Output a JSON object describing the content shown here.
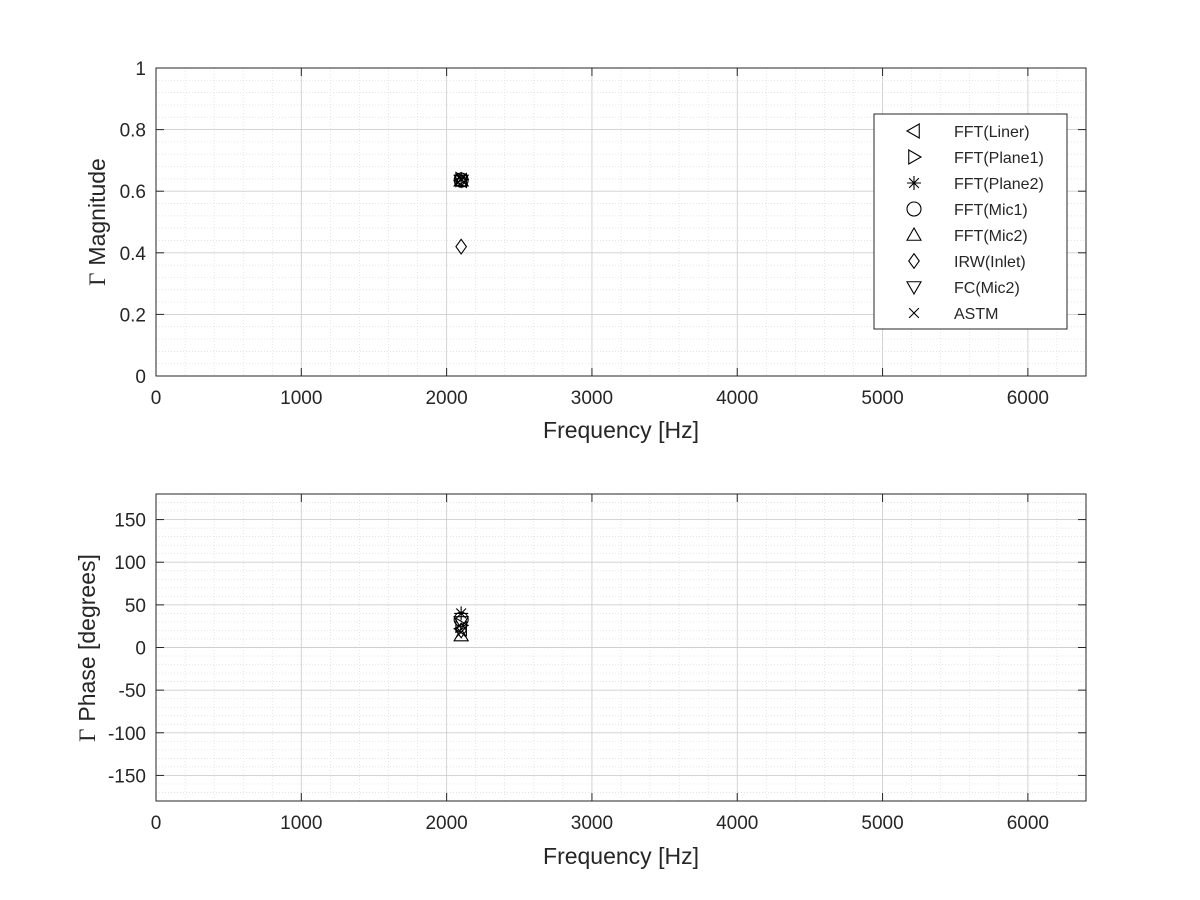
{
  "chart_data": [
    {
      "type": "scatter",
      "xlabel": "Frequency [Hz]",
      "ylabel_symbol": "Γ",
      "ylabel": "Magnitude",
      "xlim": [
        0,
        6400
      ],
      "ylim": [
        0,
        1
      ],
      "xticks": [
        0,
        1000,
        2000,
        3000,
        4000,
        5000,
        6000
      ],
      "yticks": [
        0,
        0.2,
        0.4,
        0.6,
        0.8,
        1
      ],
      "ytick_labels": [
        "0",
        "0.2",
        "0.4",
        "0.6",
        "0.8",
        "1"
      ],
      "grid": true,
      "minor_grid": true,
      "legend_position": "top-right",
      "series": [
        {
          "name": "FFT(Liner)",
          "marker": "triangle-left",
          "x": [
            2100
          ],
          "y": [
            0.635
          ]
        },
        {
          "name": "FFT(Plane1)",
          "marker": "triangle-right",
          "x": [
            2100
          ],
          "y": [
            0.638
          ]
        },
        {
          "name": "FFT(Plane2)",
          "marker": "asterisk",
          "x": [
            2100
          ],
          "y": [
            0.64
          ]
        },
        {
          "name": "FFT(Mic1)",
          "marker": "circle",
          "x": [
            2100
          ],
          "y": [
            0.636
          ]
        },
        {
          "name": "FFT(Mic2)",
          "marker": "triangle-up",
          "x": [
            2100
          ],
          "y": [
            0.634
          ]
        },
        {
          "name": "IRW(Inlet)",
          "marker": "diamond",
          "x": [
            2100
          ],
          "y": [
            0.42
          ]
        },
        {
          "name": "FC(Mic2)",
          "marker": "triangle-down",
          "x": [
            2100
          ],
          "y": [
            0.635
          ]
        },
        {
          "name": "ASTM",
          "marker": "x",
          "x": [
            2100
          ],
          "y": [
            0.637
          ]
        }
      ]
    },
    {
      "type": "scatter",
      "xlabel": "Frequency [Hz]",
      "ylabel_symbol": "Γ",
      "ylabel": "Phase [degrees]",
      "xlim": [
        0,
        6400
      ],
      "ylim": [
        -180,
        180
      ],
      "xticks": [
        0,
        1000,
        2000,
        3000,
        4000,
        5000,
        6000
      ],
      "yticks": [
        -150,
        -100,
        -50,
        0,
        50,
        100,
        150
      ],
      "ytick_labels": [
        "-150",
        "-100",
        "-50",
        "0",
        "50",
        "100",
        "150"
      ],
      "grid": true,
      "minor_grid": true,
      "series": [
        {
          "name": "FFT(Liner)",
          "marker": "triangle-left",
          "x": [
            2100
          ],
          "y": [
            22
          ]
        },
        {
          "name": "FFT(Plane1)",
          "marker": "triangle-right",
          "x": [
            2100
          ],
          "y": [
            26
          ]
        },
        {
          "name": "FFT(Plane2)",
          "marker": "asterisk",
          "x": [
            2100
          ],
          "y": [
            40
          ]
        },
        {
          "name": "FFT(Mic1)",
          "marker": "circle",
          "x": [
            2100
          ],
          "y": [
            33
          ]
        },
        {
          "name": "FFT(Mic2)",
          "marker": "triangle-up",
          "x": [
            2100
          ],
          "y": [
            14
          ]
        },
        {
          "name": "IRW(Inlet)",
          "marker": "diamond",
          "x": [
            2100
          ],
          "y": [
            20
          ]
        },
        {
          "name": "FC(Mic2)",
          "marker": "triangle-down",
          "x": [
            2100
          ],
          "y": [
            30
          ]
        },
        {
          "name": "ASTM",
          "marker": "x",
          "x": [
            2100
          ],
          "y": [
            18
          ]
        }
      ]
    }
  ]
}
